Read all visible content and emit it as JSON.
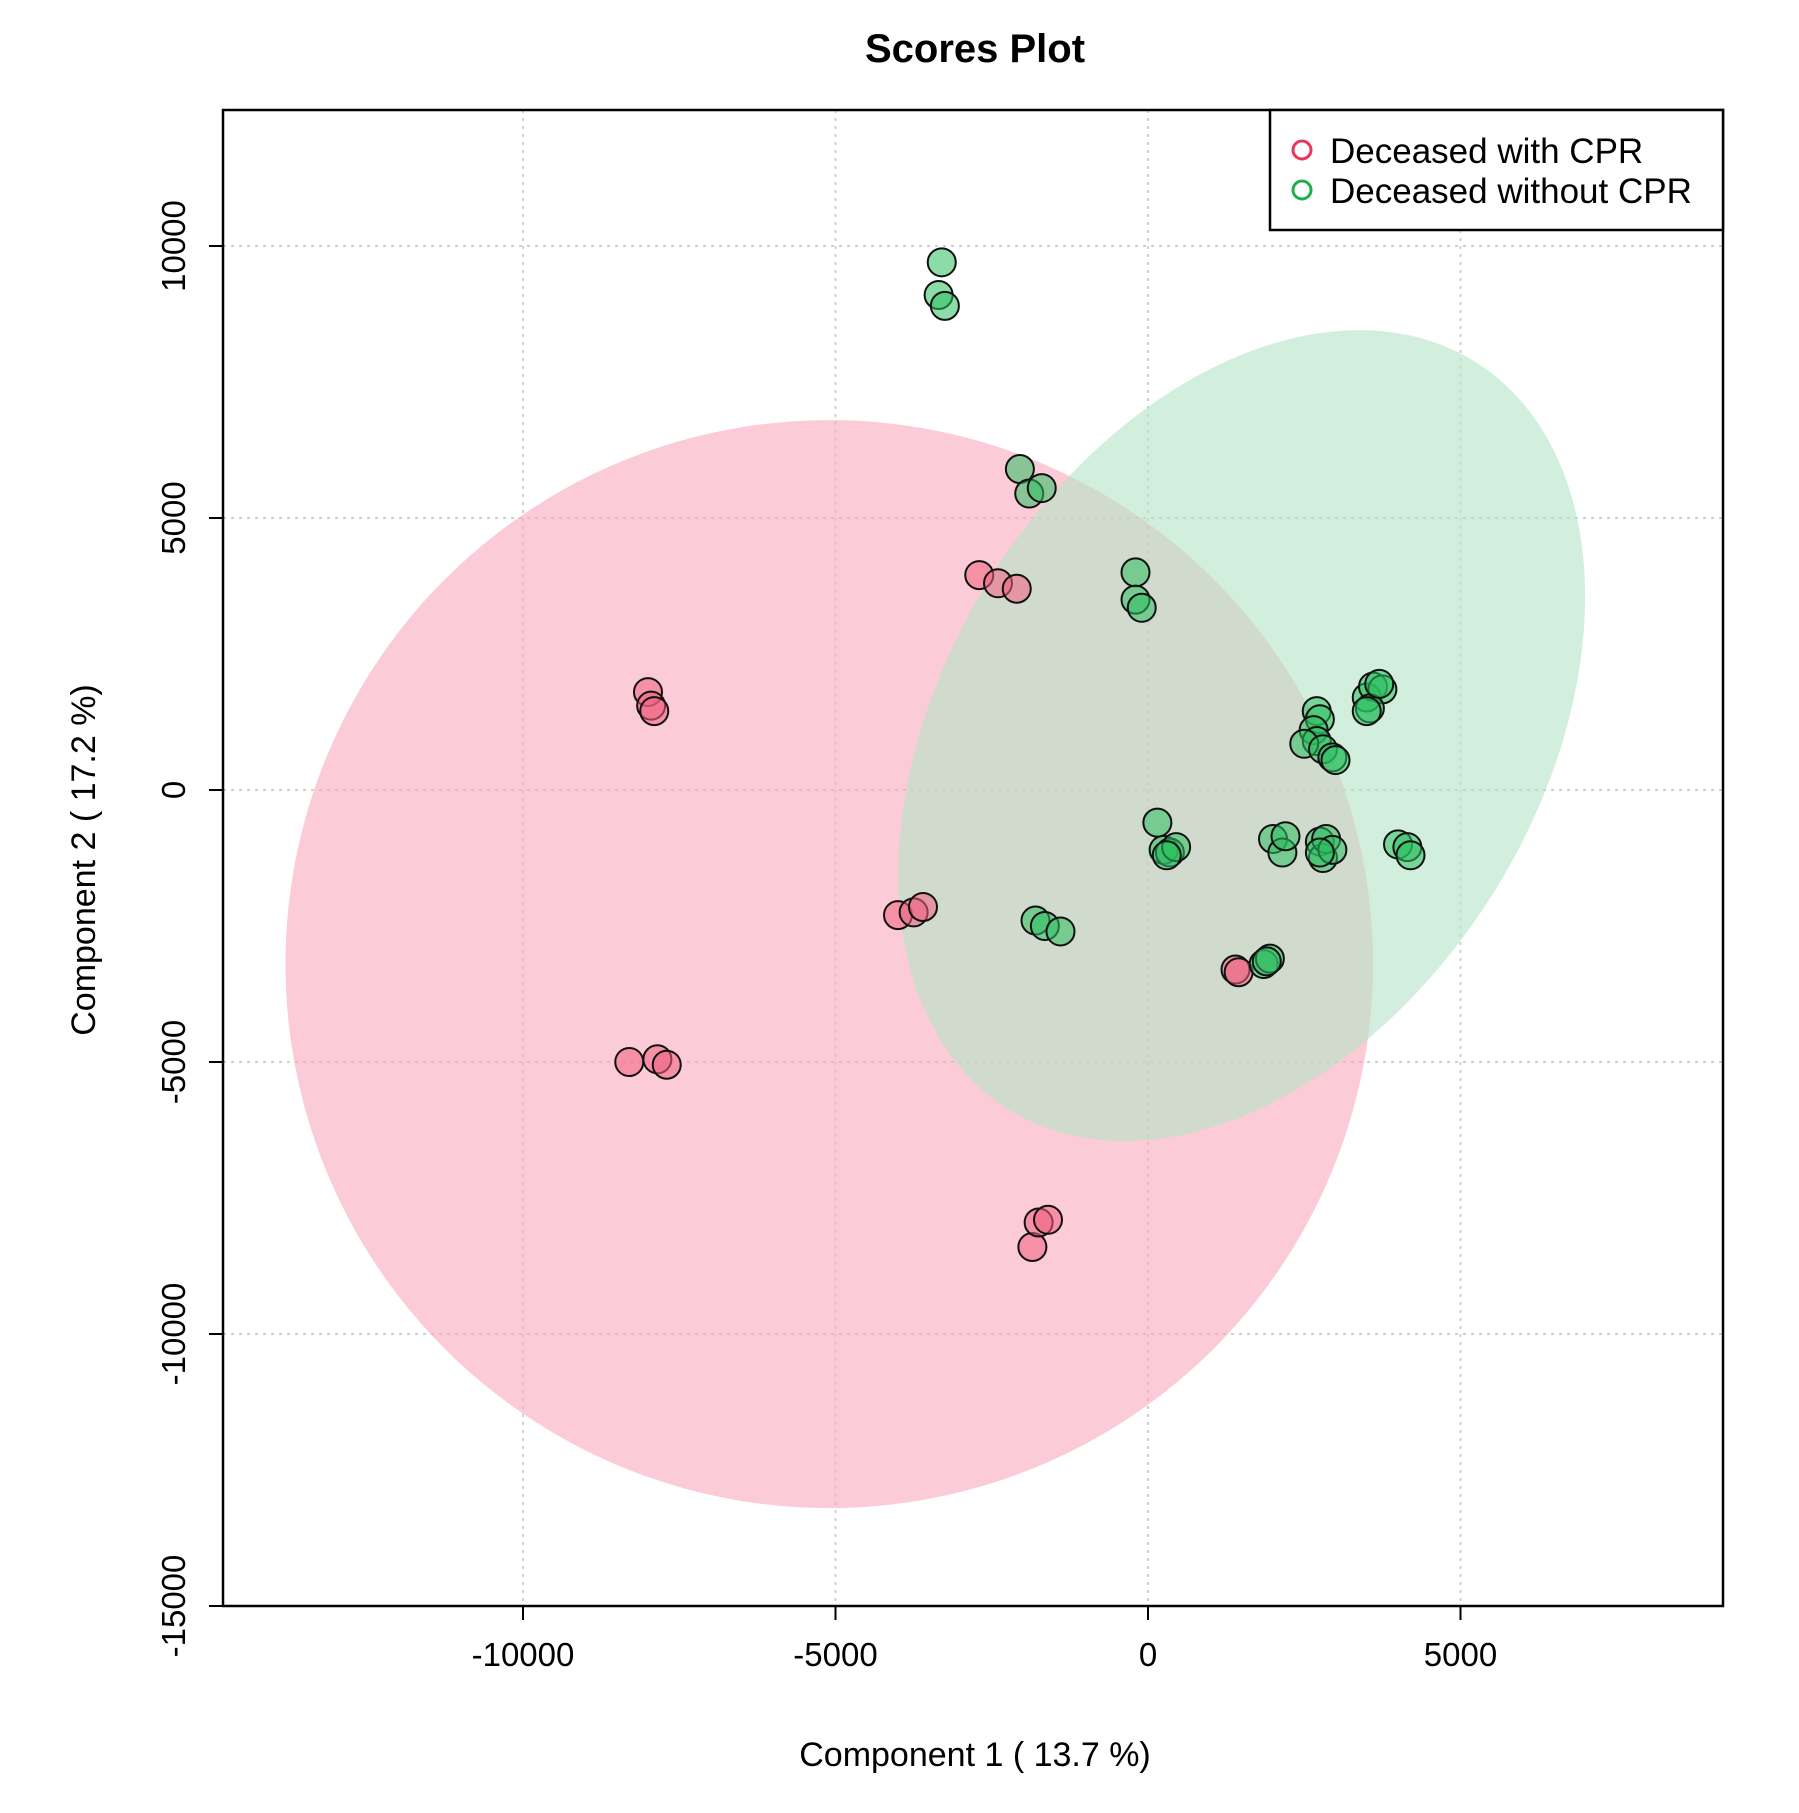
{
  "chart_data": {
    "type": "scatter",
    "title": "Scores Plot",
    "xlabel": "Component 1 ( 13.7 %)",
    "ylabel": "Component 2 ( 17.2 %)",
    "xlim": [
      -14800,
      9200
    ],
    "ylim": [
      -15000,
      12500
    ],
    "xticks": [
      -10000,
      -5000,
      0,
      5000
    ],
    "yticks": [
      -15000,
      -10000,
      -5000,
      0,
      5000,
      10000
    ],
    "xtick_labels": [
      "-10000",
      "-5000",
      "0",
      "5000"
    ],
    "ytick_labels": [
      "-15000",
      "-10000",
      "-5000",
      "0",
      "5000",
      "10000"
    ],
    "grid": true,
    "legend_position": "top-right",
    "series": [
      {
        "name": "Deceased with CPR",
        "color": "#e8365d",
        "fill": "#f06080",
        "ellipse_color": "#f9a8bc",
        "ellipse": {
          "cx": -5100,
          "cy": -3200,
          "rx": 8700,
          "ry": 10000,
          "angle_deg": 10
        },
        "points": [
          {
            "x": -8000,
            "y": 1800
          },
          {
            "x": -7950,
            "y": 1550
          },
          {
            "x": -7900,
            "y": 1450
          },
          {
            "x": -8300,
            "y": -5000
          },
          {
            "x": -7850,
            "y": -4950
          },
          {
            "x": -7700,
            "y": -5050
          },
          {
            "x": -4000,
            "y": -2300
          },
          {
            "x": -3750,
            "y": -2250
          },
          {
            "x": -3600,
            "y": -2150
          },
          {
            "x": -2700,
            "y": 3950
          },
          {
            "x": -2400,
            "y": 3800
          },
          {
            "x": -2100,
            "y": 3700
          },
          {
            "x": -1850,
            "y": -8400
          },
          {
            "x": -1750,
            "y": -7950
          },
          {
            "x": -1600,
            "y": -7900
          },
          {
            "x": 1400,
            "y": -3300
          },
          {
            "x": 1450,
            "y": -3350
          }
        ]
      },
      {
        "name": "Deceased without CPR",
        "color": "#1eae4a",
        "fill": "#2ec060",
        "ellipse_color": "#b4e4c6",
        "ellipse": {
          "cx": 1500,
          "cy": 1000,
          "rx": 4750,
          "ry": 8100,
          "angle_deg": 32
        },
        "points": [
          {
            "x": -3300,
            "y": 9700
          },
          {
            "x": -3350,
            "y": 9100
          },
          {
            "x": -3250,
            "y": 8900
          },
          {
            "x": -2050,
            "y": 5900
          },
          {
            "x": -1900,
            "y": 5450
          },
          {
            "x": -1700,
            "y": 5550
          },
          {
            "x": -200,
            "y": 4000
          },
          {
            "x": -200,
            "y": 3500
          },
          {
            "x": -100,
            "y": 3350
          },
          {
            "x": 150,
            "y": -600
          },
          {
            "x": 250,
            "y": -1100
          },
          {
            "x": 350,
            "y": -1150
          },
          {
            "x": 450,
            "y": -1050
          },
          {
            "x": 300,
            "y": -1200
          },
          {
            "x": -1800,
            "y": -2400
          },
          {
            "x": -1650,
            "y": -2500
          },
          {
            "x": -1400,
            "y": -2600
          },
          {
            "x": 1850,
            "y": -3200
          },
          {
            "x": 1950,
            "y": -3100
          },
          {
            "x": 1900,
            "y": -3150
          },
          {
            "x": 2000,
            "y": -900
          },
          {
            "x": 2150,
            "y": -1150
          },
          {
            "x": 2200,
            "y": -850
          },
          {
            "x": 2750,
            "y": -950
          },
          {
            "x": 2800,
            "y": -1250
          },
          {
            "x": 2850,
            "y": -900
          },
          {
            "x": 2950,
            "y": -1100
          },
          {
            "x": 2750,
            "y": -1150
          },
          {
            "x": 2700,
            "y": 1450
          },
          {
            "x": 2750,
            "y": 1300
          },
          {
            "x": 2650,
            "y": 1100
          },
          {
            "x": 2700,
            "y": 900
          },
          {
            "x": 2500,
            "y": 850
          },
          {
            "x": 2800,
            "y": 750
          },
          {
            "x": 2950,
            "y": 600
          },
          {
            "x": 3000,
            "y": 550
          },
          {
            "x": 3500,
            "y": 1700
          },
          {
            "x": 3600,
            "y": 1900
          },
          {
            "x": 3750,
            "y": 1850
          },
          {
            "x": 3550,
            "y": 1500
          },
          {
            "x": 3500,
            "y": 1450
          },
          {
            "x": 3700,
            "y": 1950
          },
          {
            "x": 4000,
            "y": -1000
          },
          {
            "x": 4150,
            "y": -1050
          },
          {
            "x": 4200,
            "y": -1200
          }
        ]
      }
    ]
  }
}
